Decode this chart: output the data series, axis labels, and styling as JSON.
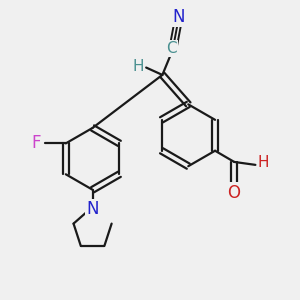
{
  "background_color": "#f0f0f0",
  "bond_color": "#1a1a1a",
  "atom_colors": {
    "C": "#4a9090",
    "H": "#4a9090",
    "F": "#cc44cc",
    "N": "#2222cc",
    "O": "#cc2222"
  },
  "font_size": 11
}
